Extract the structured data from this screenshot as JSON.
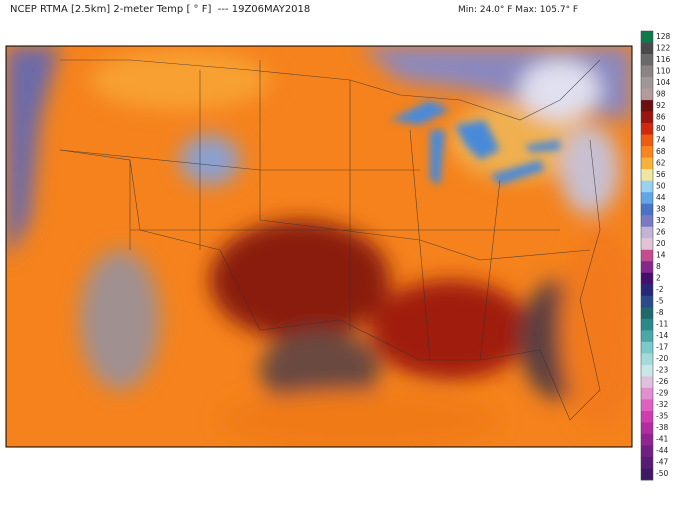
{
  "header": {
    "title": "NCEP RTMA [2.5km] 2-meter Temp [ ° F]  --- 19Z06MAY2018",
    "stats": "Min: 24.0° F Max: 105.7° F"
  },
  "colorbar": {
    "ticks": [
      128,
      122,
      116,
      110,
      104,
      98,
      92,
      86,
      80,
      74,
      68,
      62,
      56,
      50,
      44,
      38,
      32,
      26,
      20,
      14,
      8,
      2,
      -2,
      -5,
      -8,
      -11,
      -14,
      -17,
      -20,
      -23,
      -26,
      -29,
      -32,
      -35,
      -38,
      -41,
      -44,
      -47,
      -50
    ],
    "colors": [
      "#0e7a4c",
      "#4a4a4a",
      "#6a6a6a",
      "#8a8484",
      "#a09898",
      "#b49a9a",
      "#6a1010",
      "#9c1410",
      "#d0280c",
      "#ee5a10",
      "#f8861c",
      "#f8b23c",
      "#f0e6a0",
      "#9ad0f0",
      "#62a6e8",
      "#4a72c8",
      "#7a7ac4",
      "#c2b4d4",
      "#e4c4d4",
      "#c44c90",
      "#84288c",
      "#44106c",
      "#282878",
      "#2a4a8a",
      "#1e6a6a",
      "#2a8a8a",
      "#4aa8a8",
      "#7ac8c8",
      "#a4dada",
      "#c8e8e8",
      "#e0c0e0",
      "#e090d0",
      "#e060c0",
      "#d03cb0",
      "#b02ca0",
      "#902490",
      "#702080",
      "#581c74",
      "#401868"
    ]
  }
}
